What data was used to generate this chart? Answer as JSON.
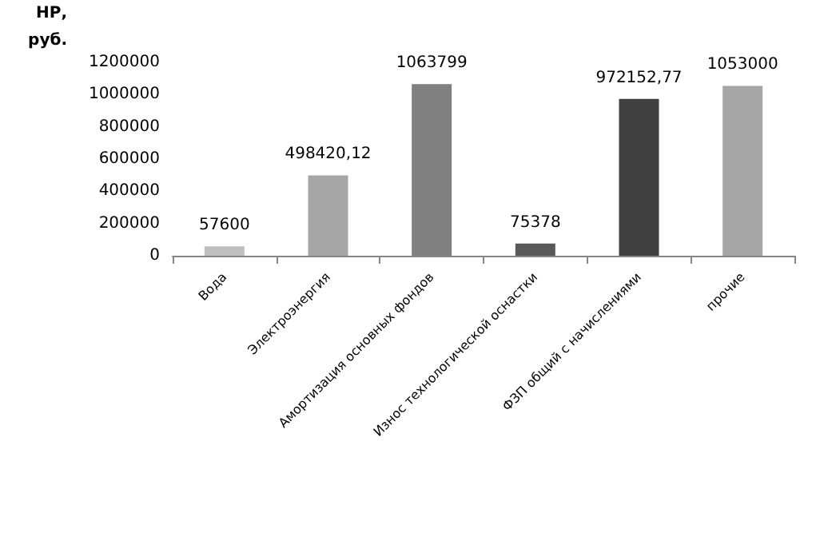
{
  "chart_data": {
    "type": "bar",
    "ylabel": "НР,\nруб.",
    "categories": [
      "Вода",
      "Электроэнергия",
      "Амортизация основных фондов",
      "Износ технологической оснастки",
      "ФЗП общий с начислениями",
      "прочие"
    ],
    "values": [
      57600,
      498420.12,
      1063799,
      75378,
      972152.77,
      1053000
    ],
    "colors": [
      "#bfbfbf",
      "#a6a6a6",
      "#808080",
      "#595959",
      "#404040",
      "#a6a6a6"
    ],
    "value_labels": [
      "57600",
      "498420,12",
      "1063799",
      "75378",
      "972152,77",
      "1053000"
    ],
    "ylim": [
      0,
      1200000
    ],
    "yticks": [
      0,
      200000,
      400000,
      600000,
      800000,
      1000000,
      1200000
    ],
    "grid": false
  }
}
